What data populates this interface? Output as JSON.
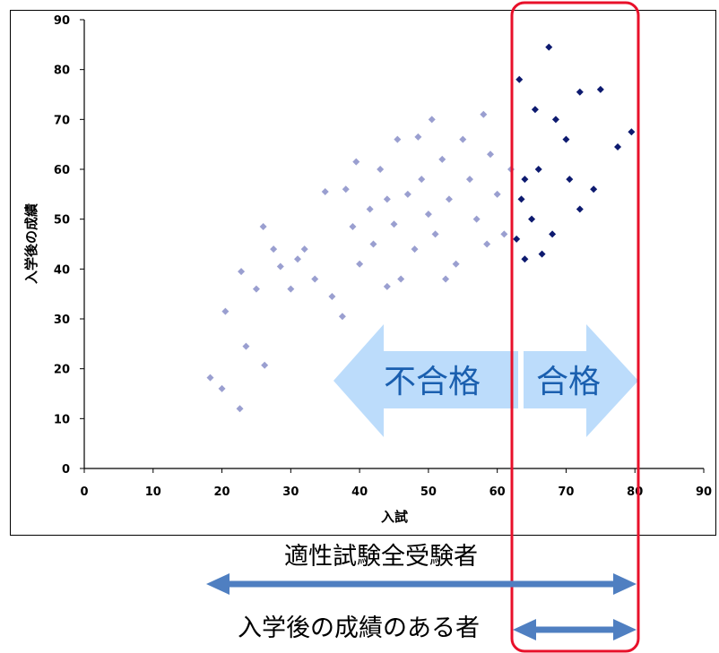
{
  "chart_data": {
    "type": "scatter",
    "xlabel": "入試",
    "ylabel": "入学後の成績",
    "xlim": [
      0,
      90
    ],
    "ylim": [
      0,
      90
    ],
    "x_ticks": [
      0,
      10,
      20,
      30,
      40,
      50,
      60,
      70,
      80,
      90
    ],
    "y_ticks": [
      0,
      10,
      20,
      30,
      40,
      50,
      60,
      70,
      80,
      90
    ],
    "grid": false,
    "threshold_x": 62.5,
    "series": [
      {
        "color": "#9a9fd0",
        "points": [
          [
            18.3,
            18.2
          ],
          [
            20.0,
            16.0
          ],
          [
            22.6,
            12.0
          ],
          [
            20.5,
            31.5
          ],
          [
            22.8,
            39.5
          ],
          [
            23.5,
            24.5
          ],
          [
            25.0,
            36.0
          ],
          [
            26.2,
            20.7
          ],
          [
            26.0,
            48.5
          ],
          [
            27.5,
            44.0
          ],
          [
            28.5,
            40.5
          ],
          [
            30.0,
            36.0
          ],
          [
            31.0,
            42.0
          ],
          [
            32.0,
            44.0
          ],
          [
            33.5,
            38.0
          ],
          [
            35.0,
            55.5
          ],
          [
            36.0,
            34.5
          ],
          [
            37.5,
            30.5
          ],
          [
            38.0,
            56.0
          ],
          [
            39.0,
            48.5
          ],
          [
            40.0,
            41.0
          ],
          [
            41.5,
            52.0
          ],
          [
            42.0,
            45.0
          ],
          [
            43.0,
            60.0
          ],
          [
            44.0,
            54.0
          ],
          [
            45.0,
            49.0
          ],
          [
            45.5,
            66.0
          ],
          [
            46.0,
            38.0
          ],
          [
            47.0,
            55.0
          ],
          [
            48.0,
            44.0
          ],
          [
            49.0,
            58.0
          ],
          [
            50.0,
            51.0
          ],
          [
            50.5,
            70.0
          ],
          [
            51.0,
            47.0
          ],
          [
            52.0,
            62.0
          ],
          [
            53.0,
            54.0
          ],
          [
            54.0,
            41.0
          ],
          [
            55.0,
            66.0
          ],
          [
            56.0,
            58.0
          ],
          [
            57.0,
            50.0
          ],
          [
            58.0,
            71.0
          ],
          [
            59.0,
            63.0
          ],
          [
            60.0,
            55.0
          ],
          [
            61.0,
            47.0
          ],
          [
            62.0,
            60.0
          ],
          [
            44.0,
            36.5
          ],
          [
            48.5,
            66.5
          ],
          [
            52.5,
            38.0
          ],
          [
            58.5,
            45.0
          ],
          [
            39.5,
            61.5
          ]
        ]
      },
      {
        "color": "#0d1a6f",
        "points": [
          [
            67.5,
            84.5
          ],
          [
            63.2,
            78.0
          ],
          [
            65.5,
            72.0
          ],
          [
            72.0,
            75.5
          ],
          [
            75.0,
            76.0
          ],
          [
            79.5,
            67.5
          ],
          [
            77.5,
            64.5
          ],
          [
            70.0,
            66.0
          ],
          [
            66.0,
            60.0
          ],
          [
            64.0,
            58.0
          ],
          [
            63.5,
            54.0
          ],
          [
            65.0,
            50.0
          ],
          [
            68.0,
            47.0
          ],
          [
            66.5,
            43.0
          ],
          [
            64.0,
            42.0
          ],
          [
            62.8,
            46.0
          ],
          [
            70.5,
            58.0
          ],
          [
            72.0,
            52.0
          ],
          [
            74.0,
            56.0
          ],
          [
            68.5,
            70.0
          ]
        ]
      }
    ]
  },
  "labels": {
    "fail": "不合格",
    "pass": "合格",
    "all_examinees": "適性試験全受験者",
    "with_grades": "入学後の成績のある者"
  },
  "colors": {
    "fail_points": "#9a9fd0",
    "pass_points": "#0d1a6f",
    "big_arrow": "#bcdcfb",
    "big_arrow_text": "#1a5faf",
    "threshold_box": "#e8102a",
    "range_arrow": "#4f7fc1"
  }
}
